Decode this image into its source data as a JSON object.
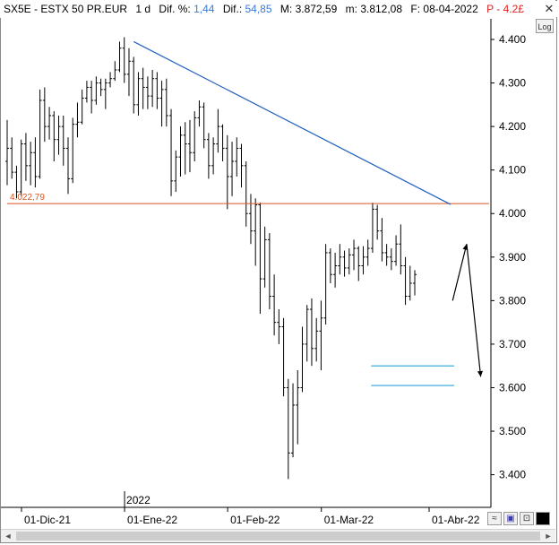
{
  "header": {
    "symbol": "SX5E - ESTX 50 PR.EUR",
    "period": "1 d",
    "dif_pct_label": "Dif. %:",
    "dif_pct_value": "1,44",
    "dif_label": "Dif.:",
    "dif_value": "54,85",
    "max_label": "M:",
    "max_value": "3.872,59",
    "min_label": "m:",
    "min_value": "3.812,08",
    "date_label": "F:",
    "date_value": "08-04-2022",
    "p_label": "P",
    "p_value": "- 4.2£"
  },
  "controls": {
    "close_label": "✕",
    "log_label": "Log",
    "scroll_left": "◄",
    "scroll_right": "►"
  },
  "colors": {
    "price": "#000000",
    "trendline": "#1f5fbf",
    "support": "#d9531e",
    "target_lines": "#29a3d6",
    "arrow": "#000000",
    "grid": "#d0d0d0"
  },
  "chart_data": {
    "type": "ohlc",
    "y_range": [
      3360,
      4450
    ],
    "y_ticks": [
      "4.400",
      "4.300",
      "4.200",
      "4.100",
      "4.000",
      "3.900",
      "3.800",
      "3.700",
      "3.600",
      "3.500",
      "3.400"
    ],
    "y_tick_values": [
      4400,
      4300,
      4200,
      4100,
      4000,
      3900,
      3800,
      3700,
      3600,
      3500,
      3400
    ],
    "x_labels": [
      {
        "label": "01-Dic-21",
        "bar": 0
      },
      {
        "label": "01-Ene-22",
        "bar": 22
      },
      {
        "label": "01-Feb-22",
        "bar": 44
      },
      {
        "label": "01-Mar-22",
        "bar": 64
      },
      {
        "label": "01-Abr-22",
        "bar": 87
      }
    ],
    "year_marker": {
      "label": "2022",
      "bar": 22
    },
    "bars": [
      [
        4120,
        4215,
        4065,
        4150
      ],
      [
        4150,
        4175,
        4080,
        4095
      ],
      [
        4095,
        4110,
        4035,
        4050
      ],
      [
        4050,
        4170,
        4040,
        4160
      ],
      [
        4160,
        4185,
        4075,
        4110
      ],
      [
        4110,
        4165,
        4065,
        4140
      ],
      [
        4140,
        4175,
        4060,
        4085
      ],
      [
        4085,
        4285,
        4080,
        4260
      ],
      [
        4260,
        4290,
        4165,
        4200
      ],
      [
        4200,
        4245,
        4170,
        4225
      ],
      [
        4225,
        4235,
        4120,
        4170
      ],
      [
        4170,
        4225,
        4135,
        4200
      ],
      [
        4200,
        4225,
        4110,
        4150
      ],
      [
        4150,
        4175,
        4045,
        4080
      ],
      [
        4080,
        4220,
        4070,
        4205
      ],
      [
        4205,
        4255,
        4175,
        4210
      ],
      [
        4210,
        4285,
        4205,
        4265
      ],
      [
        4265,
        4305,
        4255,
        4290
      ],
      [
        4290,
        4305,
        4230,
        4260
      ],
      [
        4260,
        4315,
        4250,
        4300
      ],
      [
        4300,
        4310,
        4270,
        4285
      ],
      [
        4285,
        4310,
        4240,
        4300
      ],
      [
        4300,
        4325,
        4290,
        4310
      ],
      [
        4310,
        4350,
        4305,
        4330
      ],
      [
        4330,
        4395,
        4325,
        4380
      ],
      [
        4380,
        4405,
        4300,
        4320
      ],
      [
        4320,
        4380,
        4270,
        4350
      ],
      [
        4350,
        4360,
        4230,
        4250
      ],
      [
        4250,
        4325,
        4225,
        4310
      ],
      [
        4310,
        4335,
        4240,
        4290
      ],
      [
        4290,
        4315,
        4240,
        4270
      ],
      [
        4270,
        4330,
        4245,
        4310
      ],
      [
        4310,
        4325,
        4240,
        4265
      ],
      [
        4265,
        4305,
        4200,
        4285
      ],
      [
        4285,
        4310,
        4200,
        4225
      ],
      [
        4225,
        4240,
        4040,
        4075
      ],
      [
        4075,
        4145,
        4050,
        4130
      ],
      [
        4130,
        4200,
        4085,
        4180
      ],
      [
        4180,
        4210,
        4090,
        4160
      ],
      [
        4160,
        4215,
        4095,
        4140
      ],
      [
        4140,
        4235,
        4120,
        4220
      ],
      [
        4220,
        4260,
        4200,
        4245
      ],
      [
        4245,
        4255,
        4150,
        4170
      ],
      [
        4170,
        4185,
        4080,
        4110
      ],
      [
        4110,
        4175,
        4090,
        4160
      ],
      [
        4160,
        4240,
        4140,
        4200
      ],
      [
        4200,
        4205,
        4120,
        4150
      ],
      [
        4150,
        4180,
        4010,
        4085
      ],
      [
        4085,
        4165,
        4040,
        4120
      ],
      [
        4120,
        4175,
        4085,
        4150
      ],
      [
        4150,
        4160,
        4060,
        4110
      ],
      [
        4110,
        4120,
        3970,
        4000
      ],
      [
        4000,
        4045,
        3930,
        3960
      ],
      [
        3960,
        4035,
        3880,
        4020
      ],
      [
        4020,
        4025,
        3770,
        3850
      ],
      [
        3850,
        3970,
        3830,
        3940
      ],
      [
        3940,
        3955,
        3780,
        3810
      ],
      [
        3810,
        3860,
        3720,
        3750
      ],
      [
        3750,
        3780,
        3700,
        3740
      ],
      [
        3740,
        3760,
        3580,
        3600
      ],
      [
        3600,
        3620,
        3390,
        3450
      ],
      [
        3450,
        3610,
        3440,
        3560
      ],
      [
        3560,
        3640,
        3470,
        3600
      ],
      [
        3600,
        3740,
        3590,
        3700
      ],
      [
        3700,
        3790,
        3660,
        3780
      ],
      [
        3780,
        3805,
        3650,
        3690
      ],
      [
        3690,
        3760,
        3660,
        3730
      ],
      [
        3730,
        3800,
        3640,
        3760
      ],
      [
        3760,
        3930,
        3745,
        3910
      ],
      [
        3910,
        3920,
        3840,
        3860
      ],
      [
        3860,
        3910,
        3830,
        3880
      ],
      [
        3880,
        3930,
        3860,
        3900
      ],
      [
        3900,
        3915,
        3855,
        3875
      ],
      [
        3875,
        3920,
        3860,
        3905
      ],
      [
        3905,
        3940,
        3870,
        3920
      ],
      [
        3920,
        3925,
        3845,
        3880
      ],
      [
        3880,
        3925,
        3860,
        3900
      ],
      [
        3900,
        3940,
        3880,
        3920
      ],
      [
        3920,
        4025,
        3910,
        4010
      ],
      [
        4010,
        4020,
        3940,
        3960
      ],
      [
        3960,
        3990,
        3890,
        3910
      ],
      [
        3910,
        3930,
        3880,
        3900
      ],
      [
        3900,
        3920,
        3870,
        3890
      ],
      [
        3890,
        3950,
        3880,
        3930
      ],
      [
        3930,
        3975,
        3860,
        3880
      ],
      [
        3880,
        3900,
        3790,
        3810
      ],
      [
        3810,
        3880,
        3800,
        3840
      ],
      [
        3840,
        3870,
        3812,
        3860
      ]
    ],
    "support_level": {
      "value": 4022.79,
      "label": "4.022,79"
    },
    "trendline": [
      {
        "bar": 27,
        "y": 4395
      },
      {
        "bar": 87,
        "y": 3990
      }
    ],
    "target_lines": [
      {
        "value": 3650,
        "from_bar": 71,
        "to_bar": 87
      },
      {
        "value": 3605,
        "from_bar": 71,
        "to_bar": 87
      }
    ],
    "projection_arrow": [
      {
        "bar": 88,
        "y": 3800
      },
      {
        "bar": 91,
        "y": 3930
      },
      {
        "bar": 94,
        "y": 3625
      }
    ],
    "grid": "off",
    "legend": "none"
  }
}
